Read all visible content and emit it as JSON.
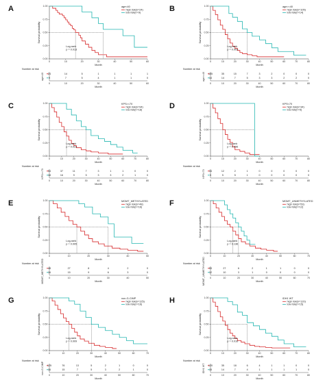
{
  "colors": {
    "high": "#d62728",
    "low": "#21b5b0",
    "axis": "#333333",
    "median": "#333333"
  },
  "chart_data": [
    {
      "panel": "A",
      "type": "line",
      "title": "age<40",
      "xlabel": "Month",
      "ylabel": "Survival probability",
      "xticks": [
        0,
        10,
        20,
        30,
        40,
        50,
        60
      ],
      "xlim": [
        0,
        60
      ],
      "yticks": [
        "0.00",
        "0.25",
        "0.50",
        "0.75",
        "1.00"
      ],
      "ylim": [
        0,
        1
      ],
      "pvalue_label": "Log-rank",
      "pvalue": "p = 0.013",
      "risk_title": "Number at risk",
      "risk_ylabels": [
        "age<40",
        "age<40"
      ],
      "series": [
        {
          "name": "high risk(n=24)",
          "risk": [
            "24",
            "14",
            "5",
            "1",
            "1",
            "1",
            "1"
          ],
          "x": [
            0,
            2,
            4,
            5,
            6,
            8,
            9,
            10,
            11,
            12,
            13,
            14,
            15,
            16,
            18,
            19,
            20,
            22,
            24,
            26,
            28,
            30,
            33,
            35,
            40,
            45,
            48,
            52,
            60
          ],
          "y": [
            1,
            0.96,
            0.92,
            0.88,
            0.85,
            0.82,
            0.78,
            0.74,
            0.7,
            0.66,
            0.63,
            0.58,
            0.55,
            0.5,
            0.45,
            0.4,
            0.34,
            0.28,
            0.22,
            0.16,
            0.12,
            0.08,
            0.08,
            0.04,
            0.04,
            0.04,
            0.04,
            0.04,
            0.04
          ]
        },
        {
          "name": "low risk(n=9)",
          "risk": [
            "9",
            "7",
            "5",
            "4",
            "1",
            "1",
            "0"
          ],
          "x": [
            0,
            10,
            20,
            26,
            30,
            33,
            40,
            45,
            50,
            52,
            55,
            60
          ],
          "y": [
            1,
            1,
            0.89,
            0.78,
            0.67,
            0.56,
            0.56,
            0.44,
            0.44,
            0.22,
            0.22,
            0.22
          ]
        }
      ],
      "median": [
        16,
        33
      ]
    },
    {
      "panel": "B",
      "type": "line",
      "title": "age>=40",
      "xlabel": "Month",
      "ylabel": "Survival probability",
      "xticks": [
        0,
        10,
        20,
        30,
        40,
        50,
        60,
        70,
        80
      ],
      "xlim": [
        0,
        80
      ],
      "yticks": [
        "0.00",
        "0.25",
        "0.50",
        "0.75",
        "1.00"
      ],
      "ylim": [
        0,
        1
      ],
      "pvalue_label": "Log-rank",
      "pvalue": "p = 0.003",
      "risk_title": "Number at risk",
      "risk_ylabels": [
        "age>=40",
        "age>=40"
      ],
      "series": [
        {
          "name": "high risk(n=105)",
          "risk": [
            "105",
            "35",
            "15",
            "7",
            "3",
            "2",
            "0",
            "0",
            "0"
          ],
          "x": [
            0,
            2,
            4,
            6,
            8,
            10,
            12,
            14,
            16,
            18,
            20,
            22,
            24,
            26,
            30,
            34,
            38,
            42,
            48,
            55,
            60
          ],
          "y": [
            1,
            0.92,
            0.84,
            0.74,
            0.64,
            0.56,
            0.46,
            0.38,
            0.3,
            0.24,
            0.2,
            0.16,
            0.12,
            0.1,
            0.08,
            0.06,
            0.04,
            0.04,
            0.04,
            0.04,
            0.04
          ]
        },
        {
          "name": "low risk(n=14)",
          "risk": [
            "14",
            "14",
            "7",
            "5",
            "3",
            "3",
            "2",
            "2",
            "0"
          ],
          "x": [
            0,
            10,
            15,
            18,
            22,
            26,
            30,
            34,
            40,
            45,
            50,
            55,
            60,
            68,
            72,
            78
          ],
          "y": [
            1,
            1,
            0.86,
            0.79,
            0.71,
            0.57,
            0.5,
            0.43,
            0.36,
            0.29,
            0.21,
            0.14,
            0.14,
            0.07,
            0.07,
            0.07
          ]
        }
      ],
      "median": [
        14,
        30
      ]
    },
    {
      "panel": "C",
      "type": "line",
      "title": "KPS>=70",
      "xlabel": "Month",
      "ylabel": "Survival probability",
      "xticks": [
        0,
        10,
        20,
        30,
        40,
        50,
        60,
        70,
        80
      ],
      "xlim": [
        0,
        80
      ],
      "yticks": [
        "0.00",
        "0.25",
        "0.50",
        "0.75",
        "1.00"
      ],
      "ylim": [
        0,
        1
      ],
      "pvalue_label": "Log-rank",
      "pvalue": "p = 0.023",
      "risk_title": "Number at risk",
      "risk_ylabels": [
        "KPS>=70",
        "KPS>=70"
      ],
      "series": [
        {
          "name": "high risk(n=94)",
          "risk": [
            "94",
            "37",
            "11",
            "7",
            "3",
            "1",
            "1",
            "0",
            "0"
          ],
          "x": [
            0,
            2,
            4,
            6,
            8,
            10,
            12,
            14,
            16,
            18,
            20,
            22,
            26,
            30,
            34,
            40,
            48,
            55,
            60
          ],
          "y": [
            1,
            0.92,
            0.84,
            0.74,
            0.64,
            0.56,
            0.46,
            0.38,
            0.3,
            0.24,
            0.2,
            0.16,
            0.12,
            0.1,
            0.08,
            0.06,
            0.04,
            0.04,
            0.04
          ]
        },
        {
          "name": "low risk(n=18)",
          "risk": [
            "18",
            "16",
            "9",
            "5",
            "3",
            "3",
            "2",
            "1",
            "0"
          ],
          "x": [
            0,
            10,
            14,
            18,
            22,
            26,
            30,
            34,
            40,
            45,
            50,
            55,
            60,
            68,
            72
          ],
          "y": [
            1,
            1,
            0.89,
            0.78,
            0.67,
            0.56,
            0.5,
            0.39,
            0.33,
            0.28,
            0.22,
            0.17,
            0.11,
            0.06,
            0.06
          ]
        }
      ],
      "median": [
        14,
        30
      ]
    },
    {
      "panel": "D",
      "type": "line",
      "title": "KPS<70",
      "xlabel": "Month",
      "ylabel": "Survival probability",
      "xticks": [
        0,
        10,
        20,
        30,
        40,
        50,
        60,
        70,
        80
      ],
      "xlim": [
        0,
        80
      ],
      "yticks": [
        "0.00",
        "0.25",
        "0.50",
        "0.75",
        "1.00"
      ],
      "ylim": [
        0,
        1
      ],
      "pvalue_label": "Log-rank",
      "pvalue": "p = 0.096",
      "risk_title": "Number at risk",
      "risk_ylabels": [
        "KPS<70",
        "KPS<70"
      ],
      "series": [
        {
          "name": "high risk(n=34)",
          "risk": [
            "34",
            "12",
            "2",
            "1",
            "0",
            "0",
            "0",
            "0",
            "0"
          ],
          "x": [
            0,
            2,
            4,
            6,
            8,
            10,
            12,
            14,
            16,
            18,
            20,
            24,
            28,
            32,
            36,
            40
          ],
          "y": [
            1,
            0.91,
            0.82,
            0.71,
            0.62,
            0.5,
            0.41,
            0.32,
            0.26,
            0.18,
            0.12,
            0.09,
            0.06,
            0.03,
            0.03,
            0.03
          ]
        },
        {
          "name": "low risk(n=5)",
          "risk": [
            "5",
            "5",
            "5",
            "1",
            "0",
            "0",
            "0",
            "0",
            "0"
          ],
          "x": [
            0,
            10,
            15,
            20,
            30,
            36,
            40
          ],
          "y": [
            1,
            1,
            1,
            1,
            1,
            0,
            0
          ]
        }
      ],
      "median": [
        10,
        36
      ]
    },
    {
      "panel": "E",
      "type": "line",
      "title": "MGMT_METHYLATED",
      "xlabel": "Month",
      "ylabel": "Survival probability",
      "xticks": [
        0,
        10,
        20,
        30,
        40,
        50
      ],
      "xlim": [
        0,
        50
      ],
      "yticks": [
        "0.00",
        "0.25",
        "0.50",
        "0.75",
        "1.00"
      ],
      "ylim": [
        0,
        1
      ],
      "pvalue_label": "Log-rank",
      "pvalue": "p = 0.005",
      "risk_title": "Number at risk",
      "risk_ylabels": [
        "MGMT_METHYLATED",
        "MGMT_METHYLATED"
      ],
      "series": [
        {
          "name": "high risk(n=48)",
          "risk": [
            "48",
            "27",
            "8",
            "4",
            "2",
            "0"
          ],
          "x": [
            0,
            2,
            4,
            6,
            8,
            10,
            12,
            14,
            16,
            18,
            20,
            22,
            25,
            28,
            32,
            36,
            40,
            45,
            48
          ],
          "y": [
            1,
            0.94,
            0.86,
            0.78,
            0.7,
            0.62,
            0.55,
            0.5,
            0.42,
            0.35,
            0.28,
            0.22,
            0.18,
            0.14,
            0.1,
            0.08,
            0.06,
            0.04,
            0.04
          ]
        },
        {
          "name": "low risk(n=16)",
          "risk": [
            "16",
            "15",
            "9",
            "6",
            "3",
            "0"
          ],
          "x": [
            0,
            10,
            15,
            18,
            22,
            26,
            30,
            33,
            38,
            42,
            45,
            48
          ],
          "y": [
            1,
            1,
            0.94,
            0.88,
            0.75,
            0.69,
            0.56,
            0.31,
            0.31,
            0.19,
            0.19,
            0.19
          ]
        }
      ],
      "median": [
        14,
        30
      ]
    },
    {
      "panel": "F",
      "type": "line",
      "title": "MGMT_UNMETHYLATED",
      "xlabel": "Month",
      "ylabel": "Survival probability",
      "xticks": [
        0,
        10,
        20,
        30,
        40,
        50,
        60,
        70
      ],
      "xlim": [
        0,
        70
      ],
      "yticks": [
        "0.00",
        "0.25",
        "0.50",
        "0.75",
        "1.00"
      ],
      "ylim": [
        0,
        1
      ],
      "pvalue_label": "Log-rank",
      "pvalue": "p = 0.136",
      "risk_title": "Number at risk",
      "risk_ylabels": [
        "MGMT_UNMETHYLATED",
        "MGMT_UNMETHYLATED"
      ],
      "series": [
        {
          "name": "high risk(n=53)",
          "risk": [
            "53",
            "27",
            "6",
            "2",
            "1",
            "1",
            "0",
            "0"
          ],
          "x": [
            0,
            2,
            4,
            6,
            8,
            10,
            12,
            14,
            16,
            18,
            20,
            22,
            25,
            28,
            32,
            36,
            40,
            45,
            48
          ],
          "y": [
            1,
            0.94,
            0.86,
            0.78,
            0.7,
            0.62,
            0.55,
            0.5,
            0.42,
            0.35,
            0.28,
            0.22,
            0.18,
            0.14,
            0.1,
            0.08,
            0.06,
            0.04,
            0.04
          ]
        },
        {
          "name": "low risk(n=12)",
          "risk": [
            "12",
            "10",
            "3",
            "1",
            "0",
            "0",
            "0",
            "0"
          ],
          "x": [
            0,
            8,
            10,
            12,
            14,
            16,
            18,
            20,
            22,
            24,
            26,
            28,
            32
          ],
          "y": [
            1,
            1,
            0.92,
            0.83,
            0.75,
            0.67,
            0.58,
            0.5,
            0.42,
            0.33,
            0.25,
            0.17,
            0.17
          ]
        }
      ],
      "median": [
        16,
        20
      ]
    },
    {
      "panel": "G",
      "type": "line",
      "title": "non-G-CIMP",
      "xlabel": "Month",
      "ylabel": "Survival probability",
      "xticks": [
        0,
        10,
        20,
        30,
        40,
        50,
        60,
        70
      ],
      "xlim": [
        0,
        70
      ],
      "yticks": [
        "0.00",
        "0.25",
        "0.50",
        "0.75",
        "1.00"
      ],
      "ylim": [
        0,
        1
      ],
      "pvalue_label": "Log-rank",
      "pvalue": "p = 0.009",
      "risk_title": "Number at risk",
      "risk_ylabels": [
        "non-G-CIMP",
        "non-G-CIMP"
      ],
      "series": [
        {
          "name": "high risk(n=125)",
          "risk": [
            "125",
            "76",
            "13",
            "5",
            "2",
            "1",
            "0",
            "0"
          ],
          "x": [
            0,
            2,
            4,
            6,
            8,
            10,
            12,
            14,
            16,
            18,
            20,
            22,
            25,
            28,
            32,
            36,
            40,
            45,
            48
          ],
          "y": [
            1,
            0.94,
            0.86,
            0.78,
            0.7,
            0.62,
            0.55,
            0.5,
            0.42,
            0.35,
            0.28,
            0.22,
            0.18,
            0.14,
            0.1,
            0.08,
            0.06,
            0.04,
            0.04
          ]
        },
        {
          "name": "low risk(n=16)",
          "risk": [
            "16",
            "15",
            "7",
            "5",
            "3",
            "2",
            "1",
            "0"
          ],
          "x": [
            0,
            10,
            14,
            18,
            22,
            26,
            30,
            35,
            40,
            45,
            50,
            55,
            60,
            65,
            70
          ],
          "y": [
            1,
            1,
            0.94,
            0.88,
            0.75,
            0.63,
            0.5,
            0.44,
            0.38,
            0.31,
            0.25,
            0.19,
            0.13,
            0.13,
            0.13
          ]
        }
      ],
      "median": [
        14,
        30
      ]
    },
    {
      "panel": "H",
      "type": "line",
      "title": "IDH1 WT",
      "xlabel": "Month",
      "ylabel": "Survival probability",
      "xticks": [
        0,
        10,
        20,
        30,
        40,
        50,
        60,
        70,
        80
      ],
      "xlim": [
        0,
        80
      ],
      "yticks": [
        "0.00",
        "0.25",
        "0.50",
        "0.75",
        "1.00"
      ],
      "ylim": [
        0,
        1
      ],
      "pvalue_label": "Log-rank",
      "pvalue": "p = 0.016",
      "risk_title": "Number at risk",
      "risk_ylabels": [
        "IDH1 WT",
        "IDH1 WT"
      ],
      "series": [
        {
          "name": "high risk(n=120)",
          "risk": [
            "120",
            "35",
            "18",
            "6",
            "4",
            "1",
            "1",
            "0",
            "0"
          ],
          "x": [
            0,
            2,
            4,
            6,
            8,
            10,
            12,
            14,
            16,
            18,
            20,
            22,
            25,
            28,
            32,
            36,
            40,
            45,
            50,
            55,
            60,
            65
          ],
          "y": [
            1,
            0.92,
            0.84,
            0.74,
            0.64,
            0.56,
            0.48,
            0.4,
            0.33,
            0.28,
            0.23,
            0.19,
            0.16,
            0.13,
            0.1,
            0.08,
            0.07,
            0.06,
            0.05,
            0.05,
            0.05,
            0.05
          ]
        },
        {
          "name": "low risk(n=15)",
          "risk": [
            "15",
            "14",
            "7",
            "4",
            "1",
            "1",
            "1",
            "1",
            "0"
          ],
          "x": [
            0,
            10,
            14,
            18,
            22,
            26,
            30,
            35,
            40,
            45,
            50,
            55,
            60,
            68,
            72,
            78
          ],
          "y": [
            1,
            1,
            0.93,
            0.87,
            0.73,
            0.67,
            0.53,
            0.47,
            0.4,
            0.33,
            0.27,
            0.2,
            0.13,
            0.07,
            0.07,
            0.07
          ]
        }
      ],
      "median": [
        14,
        30
      ]
    }
  ]
}
